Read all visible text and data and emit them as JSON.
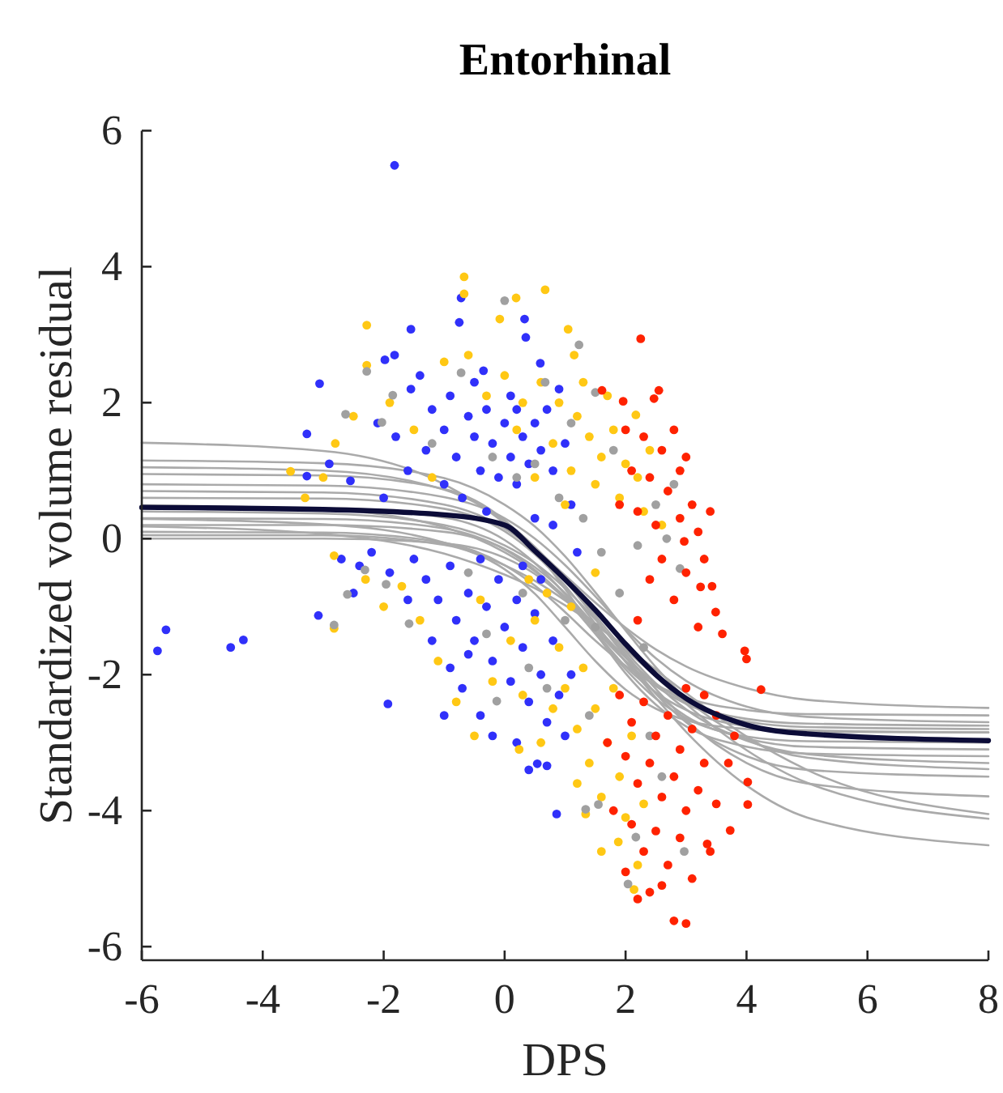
{
  "chart_data": {
    "type": "scatter",
    "title": "Entorhinal",
    "xlabel": "DPS",
    "ylabel": "Standardized volume residual",
    "xlim": [
      -6,
      8
    ],
    "ylim": [
      -6.2,
      6
    ],
    "xticks": [
      -6,
      -4,
      -2,
      0,
      2,
      4,
      6,
      8
    ],
    "yticks": [
      -6,
      -4,
      -2,
      0,
      2,
      4,
      6
    ],
    "series": [
      {
        "type": "line",
        "color": "#aaaaaa",
        "x": [
          -6,
          -3,
          -1,
          0,
          0.5,
          1,
          1.5,
          2,
          2.5,
          3,
          4,
          5,
          8
        ],
        "values": [
          0.1,
          0.09,
          -0.06,
          -0.39,
          -0.69,
          -1.08,
          -1.5,
          -1.87,
          -2.15,
          -2.34,
          -2.52,
          -2.58,
          -2.6
        ]
      },
      {
        "type": "line",
        "color": "#aaaaaa",
        "x": [
          -6,
          -3,
          -1,
          0,
          0.5,
          1,
          1.5,
          2,
          2.5,
          3,
          4,
          5,
          8
        ],
        "values": [
          0.3,
          0.29,
          0.15,
          -0.16,
          -0.46,
          -0.87,
          -1.35,
          -1.8,
          -2.17,
          -2.43,
          -2.69,
          -2.77,
          -2.8
        ]
      },
      {
        "type": "line",
        "color": "#aaaaaa",
        "x": [
          -6,
          -3,
          -1,
          0,
          0.5,
          1,
          1.5,
          2,
          2.5,
          3,
          4,
          5,
          8
        ],
        "values": [
          0.6,
          0.59,
          0.44,
          0.11,
          -0.23,
          -0.69,
          -1.25,
          -1.81,
          -2.27,
          -2.61,
          -2.94,
          -3.06,
          -3.1
        ]
      },
      {
        "type": "line",
        "color": "#aaaaaa",
        "x": [
          -6,
          -3,
          -1,
          0,
          0.5,
          1,
          1.5,
          2,
          2.5,
          3,
          4,
          5,
          8
        ],
        "values": [
          0.8,
          0.78,
          0.61,
          0.3,
          0.0,
          -0.39,
          -0.85,
          -1.33,
          -1.76,
          -2.09,
          -2.47,
          -2.62,
          -2.7
        ]
      },
      {
        "type": "line",
        "color": "#aaaaaa",
        "x": [
          -6,
          -3,
          -1,
          0,
          0.5,
          1,
          1.5,
          2,
          2.5,
          3,
          4,
          5,
          8
        ],
        "values": [
          0.95,
          0.93,
          0.73,
          0.27,
          -0.17,
          -0.74,
          -1.38,
          -1.98,
          -2.44,
          -2.76,
          -3.06,
          -3.16,
          -3.2
        ]
      },
      {
        "type": "line",
        "color": "#aaaaaa",
        "x": [
          -6,
          -3,
          -1,
          0,
          0.5,
          1,
          1.5,
          2,
          2.5,
          3,
          4,
          5,
          8
        ],
        "values": [
          0.0,
          0.0,
          -0.07,
          -0.28,
          -0.52,
          -0.89,
          -1.4,
          -1.92,
          -2.35,
          -2.64,
          -2.91,
          -2.98,
          -3.0
        ]
      },
      {
        "type": "line",
        "color": "#aaaaaa",
        "x": [
          -6,
          -3,
          -1,
          0,
          0.5,
          1,
          1.5,
          2,
          2.5,
          3,
          4,
          5,
          8
        ],
        "values": [
          1.41,
          1.29,
          0.8,
          0.23,
          -0.14,
          -0.54,
          -0.94,
          -1.31,
          -1.63,
          -1.88,
          -2.2,
          -2.37,
          -2.49
        ]
      },
      {
        "type": "line",
        "color": "#aaaaaa",
        "x": [
          -6,
          -3,
          -1,
          0,
          0.5,
          1,
          1.5,
          2,
          2.5,
          3,
          4,
          5,
          8
        ],
        "values": [
          1.15,
          1.11,
          0.89,
          0.5,
          0.18,
          -0.26,
          -0.79,
          -1.35,
          -1.89,
          -2.35,
          -2.95,
          -3.22,
          -3.39
        ]
      },
      {
        "type": "line",
        "color": "#aaaaaa",
        "x": [
          -6,
          -3,
          -1,
          0,
          0.5,
          1,
          1.5,
          2,
          2.5,
          3,
          4,
          5,
          8
        ],
        "values": [
          0.49,
          0.43,
          0.17,
          -0.2,
          -0.48,
          -0.86,
          -1.31,
          -1.81,
          -2.34,
          -2.84,
          -3.63,
          -4.1,
          -4.51
        ]
      },
      {
        "type": "line",
        "color": "#aaaaaa",
        "x": [
          -6,
          -3,
          -1,
          0,
          0.5,
          1,
          1.5,
          2,
          2.5,
          3,
          4,
          5,
          8
        ],
        "values": [
          0.18,
          0.07,
          -0.22,
          -0.53,
          -0.73,
          -0.98,
          -1.27,
          -1.59,
          -1.93,
          -2.27,
          -2.91,
          -3.4,
          -4.05
        ]
      },
      {
        "type": "line",
        "color": "#aaaaaa",
        "x": [
          -6,
          -3,
          -1,
          0,
          0.5,
          1,
          1.5,
          2,
          2.5,
          3,
          4,
          5,
          8
        ],
        "values": [
          0.4,
          0.37,
          0.2,
          -0.1,
          -0.36,
          -0.73,
          -1.19,
          -1.7,
          -2.21,
          -2.67,
          -3.3,
          -3.6,
          -3.79
        ]
      },
      {
        "type": "line",
        "color": "#aaaaaa",
        "x": [
          -6,
          -3,
          -1,
          0,
          0.5,
          1,
          1.5,
          2,
          2.5,
          3,
          4,
          5,
          8
        ],
        "values": [
          0.7,
          0.68,
          0.5,
          0.15,
          -0.18,
          -0.62,
          -1.17,
          -1.74,
          -2.28,
          -2.7,
          -3.2,
          -3.4,
          -3.5
        ]
      },
      {
        "type": "line",
        "color": "#aaaaaa",
        "x": [
          -6,
          -3,
          -1,
          0,
          0.5,
          1,
          1.5,
          2,
          2.5,
          3,
          4,
          5,
          8
        ],
        "values": [
          0.05,
          0.05,
          -0.09,
          -0.45,
          -0.81,
          -1.3,
          -1.8,
          -2.22,
          -2.5,
          -2.67,
          -2.8,
          -2.84,
          -2.85
        ]
      },
      {
        "type": "line",
        "color": "#aaaaaa",
        "x": [
          -6,
          -3,
          -1,
          0,
          0.5,
          1,
          1.5,
          2,
          2.5,
          3,
          4,
          5,
          8
        ],
        "values": [
          1.05,
          1.0,
          0.72,
          0.26,
          -0.12,
          -0.59,
          -1.13,
          -1.66,
          -2.13,
          -2.51,
          -2.97,
          -3.17,
          -3.3
        ]
      },
      {
        "type": "line",
        "color": "#aaaaaa",
        "x": [
          -6,
          -3,
          -1,
          0,
          0.5,
          1,
          1.5,
          2,
          2.5,
          3,
          4,
          5,
          8
        ],
        "values": [
          0.29,
          0.21,
          -0.06,
          -0.39,
          -0.62,
          -0.91,
          -1.25,
          -1.63,
          -2.03,
          -2.43,
          -3.11,
          -3.59,
          -4.12
        ]
      },
      {
        "type": "line",
        "color": "#aaaaaa",
        "x": [
          -6,
          -3,
          -1,
          0,
          0.5,
          1,
          1.5,
          2,
          2.5,
          3,
          4,
          5,
          8
        ],
        "values": [
          0.45,
          0.45,
          0.31,
          -0.02,
          -0.36,
          -0.82,
          -1.37,
          -1.88,
          -2.26,
          -2.52,
          -2.76,
          -2.82,
          -2.85
        ]
      },
      {
        "type": "line",
        "color": "#aaaaaa",
        "x": [
          -6,
          -3,
          -1,
          0,
          0.5,
          1,
          1.5,
          2,
          2.5,
          3,
          4,
          5,
          8
        ],
        "values": [
          0.2,
          0.2,
          0.1,
          -0.15,
          -0.42,
          -0.8,
          -1.28,
          -1.75,
          -2.13,
          -2.4,
          -2.65,
          -2.72,
          -2.75
        ]
      },
      {
        "color": "#3030fa",
        "marker": "circle",
        "x": [
          -1.82,
          -3.06,
          -1.55,
          -1.98,
          -1.82,
          -0.72,
          0.33,
          0.35,
          -0.75,
          -0.35,
          0.59,
          -1.55,
          -3.27,
          -3.27,
          -2.9,
          -2.55,
          -5.74,
          -5.6,
          -4.53,
          -4.32,
          -3.08,
          -1.93,
          0.86,
          0.54,
          0.7,
          -1.2,
          -1.0,
          -0.9,
          -0.6,
          -0.5,
          -0.3,
          -0.2,
          0.0,
          0.1,
          0.2,
          0.3,
          0.4,
          0.5,
          -0.8,
          -1.3,
          -1.6,
          -1.8,
          -2.1,
          -0.4,
          -0.1,
          0.2,
          0.6,
          0.8,
          -1.0,
          -2.0,
          -0.7,
          1.0,
          0.9,
          -0.5,
          -1.4,
          0.1,
          0.7,
          -1.5,
          -1.3,
          -1.1,
          -0.9,
          -0.8,
          -0.6,
          -0.5,
          -0.4,
          -0.3,
          -0.2,
          -0.1,
          0.0,
          0.1,
          0.2,
          0.3,
          0.4,
          0.5,
          0.6,
          0.7,
          0.8,
          0.9,
          1.0,
          -0.9,
          -0.7,
          -0.4,
          -0.2,
          0.2,
          -1.6,
          -1.9,
          -2.2,
          -2.5,
          -1.2,
          0.3,
          0.6,
          -0.6,
          -2.4,
          -2.7,
          -1.0,
          1.1,
          0.4,
          0.5,
          0.8,
          1.1,
          1.2,
          -0.3
        ],
        "values": [
          5.49,
          2.28,
          3.08,
          2.63,
          2.7,
          3.54,
          3.23,
          2.96,
          3.18,
          2.47,
          2.58,
          2.2,
          1.54,
          0.92,
          1.1,
          0.85,
          -1.65,
          -1.34,
          -1.6,
          -1.49,
          -1.13,
          -2.43,
          -4.05,
          -3.31,
          -3.34,
          1.9,
          1.6,
          2.1,
          1.8,
          1.5,
          1.9,
          1.4,
          1.7,
          1.2,
          1.9,
          1.5,
          1.1,
          1.7,
          1.2,
          1.3,
          1.0,
          1.5,
          1.7,
          1.0,
          0.9,
          0.8,
          1.3,
          1.0,
          0.8,
          0.6,
          0.6,
          1.4,
          2.2,
          2.3,
          2.4,
          2.1,
          1.9,
          -0.3,
          -0.6,
          -0.9,
          -0.4,
          -1.2,
          -0.8,
          -1.5,
          -0.3,
          -1.0,
          -1.8,
          -0.6,
          -1.3,
          -2.1,
          -0.9,
          -1.6,
          -2.4,
          -1.1,
          -2.0,
          -2.7,
          -1.5,
          -2.3,
          -2.9,
          -1.9,
          -2.2,
          -2.6,
          -2.9,
          -3.0,
          -0.9,
          -0.5,
          -0.2,
          -0.8,
          -1.5,
          -0.4,
          -0.6,
          -1.7,
          -0.4,
          -0.3,
          -2.6,
          -2.0,
          -3.4,
          0.3,
          0.2,
          0.5,
          -0.2,
          0.4
        ]
      },
      {
        "color": "#ffc814",
        "marker": "circle",
        "x": [
          -0.67,
          -0.67,
          0.67,
          -2.28,
          -2.28,
          0.19,
          -0.08,
          -3.54,
          1.05,
          1.15,
          2.17,
          -2.8,
          -2.5,
          -3.0,
          -3.3,
          0.6,
          0.9,
          1.2,
          1.4,
          1.6,
          1.8,
          2.0,
          1.1,
          0.8,
          0.3,
          0.0,
          -0.3,
          -1.0,
          -1.5,
          -1.9,
          1.5,
          1.9,
          2.2,
          2.4,
          1.3,
          0.5,
          1.7,
          0.2,
          -0.6,
          2.3,
          1.0,
          -1.2,
          2.6,
          0.5,
          0.7,
          0.9,
          1.0,
          1.1,
          1.2,
          1.3,
          1.4,
          1.5,
          1.6,
          1.7,
          1.8,
          1.9,
          2.0,
          2.1,
          0.8,
          0.6,
          0.3,
          0.1,
          -0.2,
          -0.5,
          -0.8,
          -1.1,
          -1.4,
          -1.7,
          -2.0,
          -2.82,
          -2.82,
          -2.3,
          0.24,
          1.34,
          1.88,
          2.14,
          1.2,
          2.3,
          1.6,
          0.4,
          -0.4,
          1.5,
          2.2
        ],
        "values": [
          3.85,
          3.6,
          3.66,
          3.14,
          2.55,
          3.54,
          3.23,
          0.99,
          3.08,
          2.7,
          1.82,
          1.4,
          1.8,
          0.9,
          0.6,
          2.3,
          2.0,
          1.8,
          1.5,
          1.2,
          1.6,
          1.1,
          1.0,
          1.4,
          2.0,
          2.4,
          2.1,
          2.6,
          1.6,
          2.0,
          0.8,
          0.6,
          0.9,
          1.3,
          2.3,
          0.9,
          2.1,
          1.6,
          2.7,
          0.4,
          0.5,
          0.9,
          0.2,
          -1.2,
          -0.8,
          -1.6,
          -2.2,
          -1.0,
          -2.8,
          -1.9,
          -3.3,
          -2.5,
          -3.8,
          -3.0,
          -2.2,
          -3.5,
          -4.1,
          -2.9,
          -2.5,
          -3.0,
          -2.3,
          -1.5,
          -2.1,
          -2.9,
          -2.4,
          -1.8,
          -1.2,
          -0.7,
          -1.0,
          -1.32,
          -0.25,
          -0.6,
          -3.1,
          -4.05,
          -4.46,
          -5.16,
          -3.6,
          -3.9,
          -4.6,
          -0.6,
          -0.9,
          -0.5,
          -4.8
        ]
      },
      {
        "color": "#a0a0a0",
        "marker": "circle",
        "x": [
          0.0,
          1.23,
          0.67,
          1.5,
          -0.72,
          -2.28,
          -2.63,
          -1.85,
          -2.03,
          -2.6,
          -2.82,
          -2.31,
          -1.96,
          -1.58,
          -0.13,
          2.04,
          1.34,
          1.55,
          2.97,
          2.17,
          2.9,
          2.68,
          0.2,
          0.5,
          0.9,
          1.3,
          1.6,
          1.9,
          2.2,
          2.5,
          1.0,
          0.4,
          -0.3,
          -0.6,
          0.7,
          1.4,
          2.4,
          2.6,
          1.8,
          1.1,
          -1.2,
          -0.2,
          0.3,
          2.8,
          2.3,
          1.5
        ],
        "values": [
          3.5,
          2.85,
          2.3,
          2.15,
          2.44,
          2.46,
          1.83,
          2.11,
          1.71,
          -0.82,
          -1.27,
          -0.46,
          -0.67,
          -1.25,
          -2.39,
          -5.08,
          -3.98,
          -3.91,
          -4.6,
          -4.39,
          -0.44,
          0.0,
          0.9,
          1.1,
          0.6,
          0.3,
          -0.2,
          -0.8,
          -0.1,
          0.5,
          -1.2,
          -1.9,
          -1.4,
          -0.5,
          -2.2,
          -2.6,
          -2.9,
          -3.5,
          1.3,
          1.7,
          1.4,
          1.2,
          -0.8,
          0.8,
          -1.6,
          -1.3
        ]
      },
      {
        "color": "#ff2200",
        "marker": "circle",
        "x": [
          2.25,
          2.55,
          2.47,
          1.96,
          1.61,
          3.97,
          4.0,
          4.24,
          4.02,
          4.02,
          3.73,
          3.35,
          2.8,
          3.0,
          3.49,
          3.43,
          3.24,
          2.97,
          2.0,
          2.3,
          2.6,
          2.8,
          3.0,
          2.1,
          2.4,
          2.7,
          3.1,
          2.2,
          2.5,
          2.9,
          3.2,
          2.6,
          3.0,
          3.3,
          2.8,
          3.2,
          3.6,
          2.4,
          1.9,
          2.9,
          3.4,
          2.2,
          1.9,
          2.1,
          2.3,
          2.5,
          2.7,
          2.9,
          3.1,
          3.3,
          2.0,
          2.2,
          2.4,
          2.6,
          2.8,
          3.0,
          3.2,
          3.5,
          2.1,
          2.3,
          2.5,
          2.7,
          2.9,
          3.1,
          2.4,
          2.6,
          3.4,
          3.7,
          3.5,
          3.3,
          1.7,
          1.8,
          2.0,
          3.8,
          2.2,
          3.0
        ],
        "values": [
          2.94,
          2.18,
          2.06,
          2.02,
          2.18,
          -1.65,
          -1.77,
          -2.22,
          -3.58,
          -3.91,
          -4.29,
          -4.49,
          -5.62,
          -5.66,
          -1.08,
          -0.7,
          -0.71,
          -0.04,
          1.6,
          1.5,
          1.3,
          1.6,
          1.2,
          1.0,
          0.9,
          0.7,
          0.5,
          0.4,
          0.2,
          0.3,
          0.1,
          -0.3,
          -0.5,
          -0.3,
          -0.9,
          -1.3,
          -1.4,
          -0.6,
          0.5,
          1.0,
          0.4,
          -1.2,
          -2.3,
          -2.7,
          -2.4,
          -2.9,
          -2.6,
          -3.1,
          -2.8,
          -3.3,
          -3.2,
          -3.6,
          -3.3,
          -3.8,
          -3.5,
          -4.0,
          -3.7,
          -3.9,
          -4.2,
          -4.6,
          -4.3,
          -4.8,
          -4.4,
          -5.0,
          -5.2,
          -5.1,
          -4.6,
          -3.3,
          -2.6,
          -2.3,
          -3.0,
          -4.0,
          -4.9,
          -2.9,
          -5.3,
          -2.2
        ]
      },
      {
        "type": "line",
        "color": "#0c0c38",
        "x": [
          -6,
          -3,
          -1,
          0,
          0.5,
          1,
          1.5,
          2,
          2.5,
          3,
          4,
          5,
          8
        ],
        "values": [
          0.46,
          0.43,
          0.35,
          0.2,
          -0.18,
          -0.6,
          -1.05,
          -1.55,
          -2.0,
          -2.35,
          -2.74,
          -2.87,
          -2.97
        ]
      }
    ]
  }
}
